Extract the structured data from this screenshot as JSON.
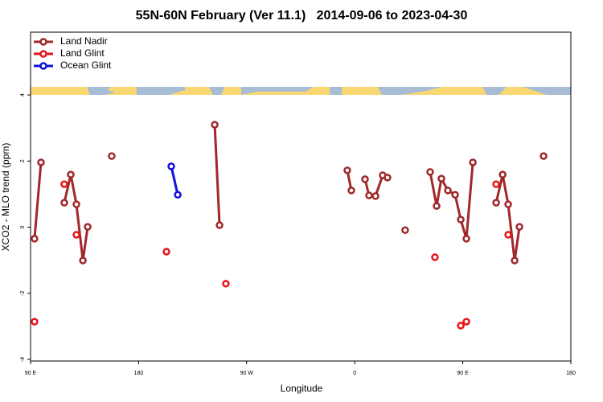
{
  "chart_data": {
    "type": "line",
    "title": "55N-60N February (Ver 11.1)   2014-09-06 to 2023-04-30",
    "xlabel": "Longitude",
    "ylabel": "XCO2 - MLO trend (ppm)",
    "xlim": [
      90,
      540
    ],
    "ylim": [
      -4.05,
      5.9
    ],
    "xticks": [
      {
        "value": 90,
        "label": "90 E"
      },
      180,
      {
        "value": 270,
        "label": "90 W"
      },
      {
        "value": 360,
        "label": "0"
      },
      {
        "value": 450,
        "label": "90 E"
      },
      {
        "value": 540,
        "label": "180"
      }
    ],
    "yticks": [
      -4,
      -2,
      0,
      2,
      4
    ],
    "legend": "top-left",
    "series": [
      {
        "name": "Land Nadir",
        "color": "#a0282a",
        "x": [
          93.3,
          98.7,
          null,
          118.1,
          123.5,
          128.2,
          133.6,
          137.6,
          null,
          157.6,
          null,
          243.4,
          247.4,
          null,
          353.8,
          357.2,
          null,
          368.6,
          371.9,
          377.3,
          383.3,
          387.3,
          null,
          402.0,
          null,
          422.8,
          428.2,
          432.2,
          437.6,
          443.6,
          448.3,
          453.0,
          458.4,
          null,
          477.8,
          483.2,
          487.8,
          493.2,
          497.2,
          null,
          517.3
        ],
        "values": [
          -0.35,
          1.96,
          null,
          0.74,
          1.59,
          0.69,
          -1.01,
          0.01,
          null,
          2.15,
          null,
          3.1,
          0.06,
          null,
          1.72,
          1.11,
          null,
          1.45,
          0.96,
          0.94,
          1.57,
          1.5,
          null,
          -0.09,
          null,
          1.67,
          0.64,
          1.47,
          1.11,
          0.98,
          0.23,
          -0.35,
          1.96,
          null,
          0.74,
          1.59,
          0.69,
          -1.01,
          0.01,
          null,
          2.15
        ]
      },
      {
        "name": "Land Glint",
        "color": "#e8141a",
        "x": [
          93.3,
          null,
          118.1,
          null,
          128.2,
          null,
          203.2,
          null,
          252.7,
          null,
          426.8,
          null,
          448.3,
          null,
          453.0,
          null,
          477.8,
          null,
          487.8
        ],
        "values": [
          -2.86,
          null,
          1.3,
          null,
          -0.23,
          null,
          -0.74,
          null,
          -1.71,
          null,
          -0.91,
          null,
          -2.98,
          null,
          -2.86,
          null,
          1.3,
          null,
          -0.23
        ]
      },
      {
        "name": "Ocean Glint",
        "color": "#1010e0",
        "x": [
          207.2,
          212.6
        ],
        "values": [
          1.84,
          0.98
        ]
      }
    ]
  }
}
